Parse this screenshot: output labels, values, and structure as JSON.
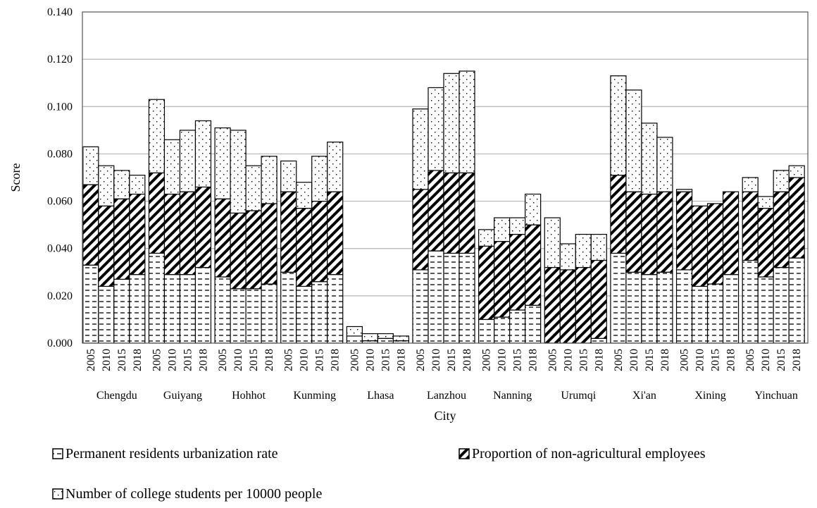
{
  "chart_data": {
    "type": "bar",
    "stacked": true,
    "xlabel": "City",
    "ylabel": "Score",
    "ylim": [
      0,
      0.14
    ],
    "yticks": [
      "0.000",
      "0.020",
      "0.040",
      "0.060",
      "0.080",
      "0.100",
      "0.120",
      "0.140"
    ],
    "grid": true,
    "legend_position": "bottom",
    "years": [
      "2005",
      "2010",
      "2015",
      "2018"
    ],
    "cities": [
      "Chengdu",
      "Guiyang",
      "Hohhot",
      "Kunming",
      "Lhasa",
      "Lanzhou",
      "Nanning",
      "Urumqi",
      "Xi'an",
      "Xining",
      "Yinchuan"
    ],
    "series": [
      {
        "name": "Permanent residents urbanization rate",
        "pattern": "dashes",
        "values": [
          [
            0.033,
            0.024,
            0.027,
            0.029
          ],
          [
            0.038,
            0.029,
            0.029,
            0.032
          ],
          [
            0.028,
            0.023,
            0.023,
            0.025
          ],
          [
            0.03,
            0.024,
            0.026,
            0.029
          ],
          [
            0.003,
            0.001,
            0.002,
            0.001
          ],
          [
            0.031,
            0.039,
            0.038,
            0.038
          ],
          [
            0.01,
            0.011,
            0.014,
            0.016
          ],
          [
            0.0,
            0.0,
            0.0,
            0.002
          ],
          [
            0.038,
            0.03,
            0.029,
            0.03
          ],
          [
            0.031,
            0.024,
            0.025,
            0.029
          ],
          [
            0.035,
            0.028,
            0.032,
            0.036
          ]
        ]
      },
      {
        "name": "Proportion of non-agricultural employees",
        "pattern": "diagonal",
        "values": [
          [
            0.034,
            0.034,
            0.034,
            0.034
          ],
          [
            0.034,
            0.034,
            0.035,
            0.034
          ],
          [
            0.033,
            0.032,
            0.033,
            0.034
          ],
          [
            0.034,
            0.033,
            0.034,
            0.035
          ],
          [
            0.0,
            0.0,
            0.0,
            0.0
          ],
          [
            0.034,
            0.034,
            0.034,
            0.034
          ],
          [
            0.031,
            0.032,
            0.032,
            0.034
          ],
          [
            0.032,
            0.031,
            0.032,
            0.033
          ],
          [
            0.033,
            0.034,
            0.034,
            0.034
          ],
          [
            0.033,
            0.034,
            0.034,
            0.035
          ],
          [
            0.029,
            0.029,
            0.032,
            0.034
          ]
        ]
      },
      {
        "name": "Number of college students per 10000 people",
        "pattern": "dots",
        "values": [
          [
            0.016,
            0.017,
            0.012,
            0.008
          ],
          [
            0.031,
            0.023,
            0.026,
            0.028
          ],
          [
            0.03,
            0.035,
            0.019,
            0.02
          ],
          [
            0.013,
            0.011,
            0.019,
            0.021
          ],
          [
            0.004,
            0.003,
            0.002,
            0.002
          ],
          [
            0.034,
            0.035,
            0.042,
            0.043
          ],
          [
            0.007,
            0.01,
            0.007,
            0.013
          ],
          [
            0.021,
            0.011,
            0.014,
            0.011
          ],
          [
            0.042,
            0.043,
            0.03,
            0.023
          ],
          [
            0.001,
            0.0,
            0.0,
            0.0
          ],
          [
            0.006,
            0.005,
            0.009,
            0.005
          ]
        ]
      }
    ]
  }
}
